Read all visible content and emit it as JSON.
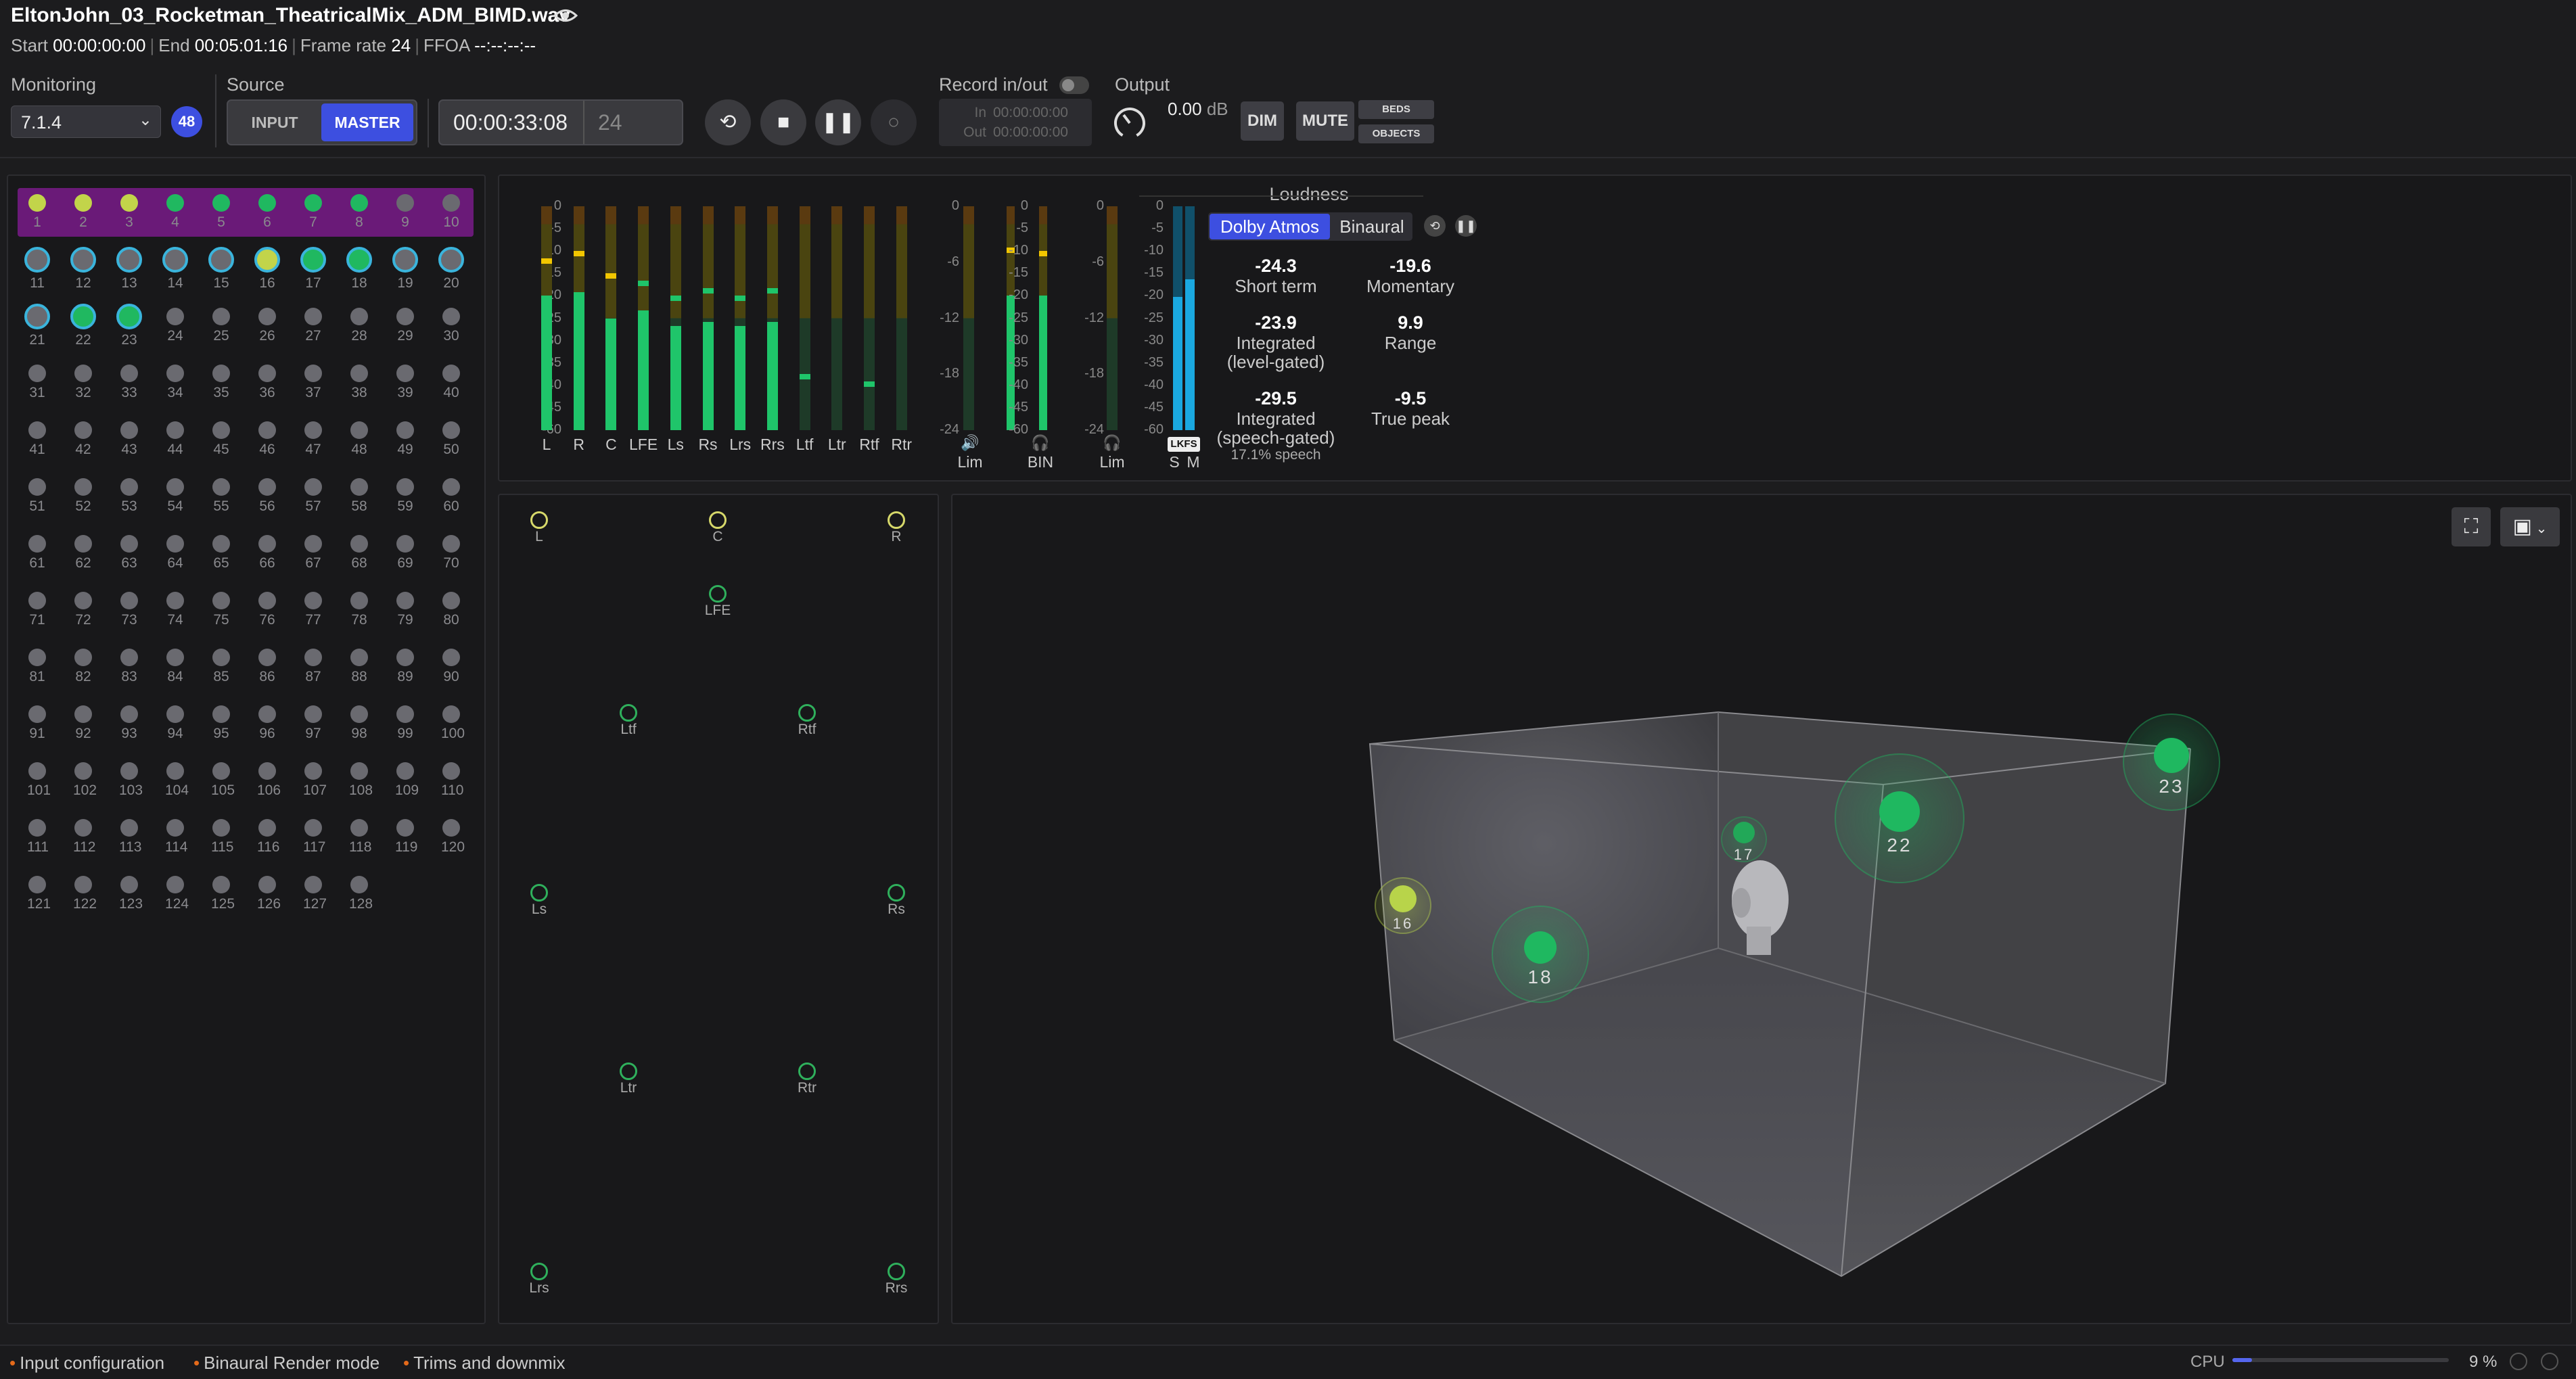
{
  "file": {
    "title": "EltonJohn_03_Rocketman_TheatricalMix_ADM_BIMD.wav",
    "eye_icon": "eye-icon"
  },
  "meta": {
    "start_label": "Start",
    "start": "00:00:00:00",
    "end_label": "End",
    "end": "00:05:01:16",
    "fr_label": "Frame rate",
    "fr": "24",
    "ffoa_label": "FFOA",
    "ffoa": "--:--:--:--"
  },
  "monitoring": {
    "label": "Monitoring",
    "value": "7.1.4",
    "badge": "48"
  },
  "source": {
    "label": "Source",
    "input": "INPUT",
    "master": "MASTER"
  },
  "timecode": {
    "value": "00:00:33:08",
    "frames": "24"
  },
  "record": {
    "label": "Record in/out",
    "in_label": "In",
    "in": "00:00:00:00",
    "out_label": "Out",
    "out": "00:00:00:00"
  },
  "output": {
    "label": "Output",
    "value": "0.00",
    "unit": "dB",
    "dim": "DIM",
    "mute": "MUTE",
    "beds": "BEDS",
    "objects": "OBJECTS"
  },
  "channels": {
    "count": 128,
    "ring": [
      11,
      12,
      13,
      14,
      15,
      16,
      17,
      18,
      19,
      20,
      21,
      22,
      23
    ],
    "yellow": [
      1,
      2,
      3,
      16
    ],
    "green": [
      4,
      5,
      6,
      7,
      8,
      17,
      18,
      22,
      23
    ],
    "labels": [
      "1",
      "2",
      "3",
      "4",
      "5",
      "6",
      "7",
      "8",
      "9",
      "10",
      "11",
      "12",
      "13",
      "14",
      "15",
      "16",
      "17",
      "18",
      "19",
      "20",
      "21",
      "22",
      "23",
      "24",
      "25",
      "26",
      "27",
      "28",
      "29",
      "30",
      "31",
      "32",
      "33",
      "34",
      "35",
      "36",
      "37",
      "38",
      "39",
      "40",
      "41",
      "42",
      "43",
      "44",
      "45",
      "46",
      "47",
      "48",
      "49",
      "50",
      "51",
      "52",
      "53",
      "54",
      "55",
      "56",
      "57",
      "58",
      "59",
      "60",
      "61",
      "62",
      "63",
      "64",
      "65",
      "66",
      "67",
      "68",
      "69",
      "70",
      "71",
      "72",
      "73",
      "74",
      "75",
      "76",
      "77",
      "78",
      "79",
      "80",
      "81",
      "82",
      "83",
      "84",
      "85",
      "86",
      "87",
      "88",
      "89",
      "90",
      "91",
      "92",
      "93",
      "94",
      "95",
      "96",
      "97",
      "98",
      "99",
      "100",
      "101",
      "102",
      "103",
      "104",
      "105",
      "106",
      "107",
      "108",
      "109",
      "110",
      "111",
      "112",
      "113",
      "114",
      "115",
      "116",
      "117",
      "118",
      "119",
      "120",
      "121",
      "122",
      "123",
      "124",
      "125",
      "126",
      "127",
      "128"
    ]
  },
  "meters": {
    "scale": [
      "0",
      "-5",
      "-10",
      "-15",
      "-20",
      "-25",
      "-30",
      "-35",
      "-40",
      "-45",
      "-60"
    ],
    "channels": [
      {
        "name": "L",
        "level": -24,
        "peak": -14
      },
      {
        "name": "R",
        "level": -23,
        "peak": -12
      },
      {
        "name": "C",
        "level": -30,
        "peak": -18
      },
      {
        "name": "LFE",
        "level": -28,
        "peak": -20
      },
      {
        "name": "Ls",
        "level": -32,
        "peak": -24
      },
      {
        "name": "Rs",
        "level": -31,
        "peak": -22
      },
      {
        "name": "Lrs",
        "level": -32,
        "peak": -24
      },
      {
        "name": "Rrs",
        "level": -31,
        "peak": -22
      },
      {
        "name": "Ltf",
        "level": -60,
        "peak": -45
      },
      {
        "name": "Ltr",
        "level": -60,
        "peak": -60
      },
      {
        "name": "Rtf",
        "level": -60,
        "peak": -47
      },
      {
        "name": "Rtr",
        "level": -60,
        "peak": -60
      }
    ],
    "lim_scale": [
      "0",
      "-6",
      "-12",
      "-18",
      "-24"
    ],
    "lim1": "Lim",
    "bin": "BIN",
    "lim2": "Lim",
    "bin_scale": [
      "0",
      "-5",
      "-10",
      "-15",
      "-20",
      "-25",
      "-30",
      "-35",
      "-40",
      "-45",
      "-60"
    ],
    "lkfs_scale": [
      "0",
      "-5",
      "-10",
      "-15",
      "-20",
      "-25",
      "-30",
      "-35",
      "-40",
      "-45",
      "-60"
    ],
    "lkfs": "LKFS",
    "s": "S",
    "m": "M"
  },
  "loudness": {
    "title": "Loudness",
    "tab_atmos": "Dolby Atmos",
    "tab_binaural": "Binaural",
    "short_term": "-24.3",
    "short_term_label": "Short term",
    "momentary": "-19.6",
    "momentary_label": "Momentary",
    "integrated": "-23.9",
    "integrated_label": "Integrated",
    "integrated_sub": "(level-gated)",
    "range": "9.9",
    "range_label": "Range",
    "integrated_speech": "-29.5",
    "integrated_speech_label": "Integrated",
    "integrated_speech_sub": "(speech-gated)",
    "speech_pct": "17.1% speech",
    "true_peak": "-9.5",
    "true_peak_label": "True peak"
  },
  "speakers": [
    "L",
    "C",
    "R",
    "LFE",
    "Ltf",
    "Rtf",
    "Ls",
    "Rs",
    "Ltr",
    "Rtr",
    "Lrs",
    "Rrs"
  ],
  "objects": [
    "16",
    "17",
    "18",
    "22",
    "23"
  ],
  "footer": {
    "input_config": "Input configuration",
    "binaural": "Binaural Render mode",
    "trims": "Trims and downmix",
    "cpu_label": "CPU",
    "cpu": "9 %",
    "cpu_fraction": 0.09
  },
  "colors": {
    "accent": "#3d4fe0",
    "purple_highlight": "#6a1a78",
    "meter_green": "#1fc56a",
    "meter_yellow": "#f2c600",
    "lkfs_blue": "#1aa8e0"
  }
}
